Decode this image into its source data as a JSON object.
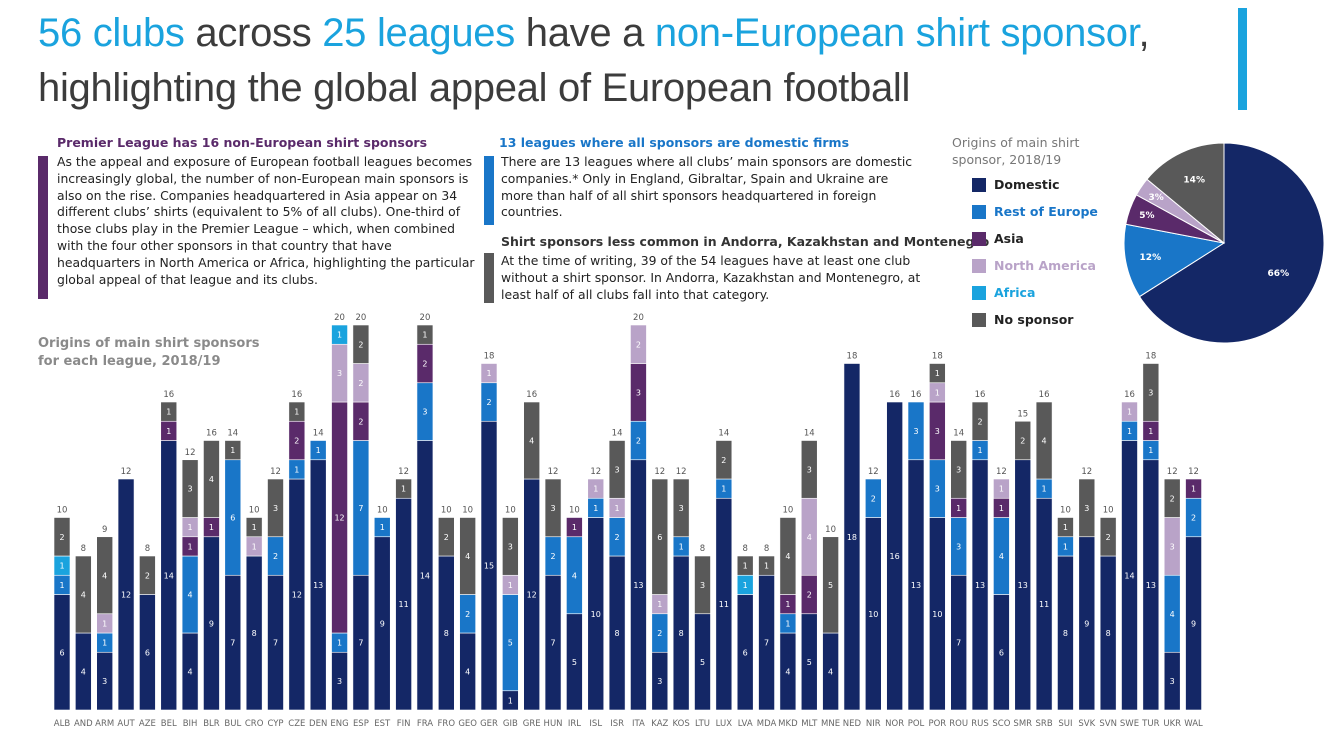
{
  "headline": {
    "hl1": "56 clubs",
    "t1": " across ",
    "hl2": "25 leagues",
    "t2": " have a ",
    "hl3": "non-European shirt sponsor",
    "t3": ", highlighting the global appeal of European football"
  },
  "sections": [
    {
      "title": "Premier League has 16 non-European shirt sponsors",
      "body": "As the appeal and exposure of European football leagues becomes increasingly global, the number of non-European main sponsors is also on the rise. Companies headquartered in Asia appear on 34 different clubs’ shirts (equivalent to 5% of all clubs). One-third of those clubs play in the Premier League – which, when combined with the four other sponsors in that country that have headquarters in North America or Africa, highlighting the particular global appeal of that league and its clubs.",
      "color": "#5a2a6a"
    },
    {
      "title": "13 leagues where all sponsors are domestic firms",
      "body": "There are 13 leagues where all clubs’ main sponsors are domestic companies.* Only in England, Gibraltar, Spain and Ukraine are more than half of all shirt sponsors headquartered in foreign countries.",
      "color": "#1976c8"
    },
    {
      "title": "Shirt sponsors less common in Andorra, Kazakhstan and Montenegro",
      "body": "At the time of writing, 39 of the 54 leagues have at least one club without a shirt sponsor. In Andorra, Kazakhstan and Montenegro, at least half of all clubs fall into that category.",
      "color": "#595959"
    }
  ],
  "pie_title": "Origins of main shirt sponsor, 2018/19",
  "chart_data": [
    {
      "type": "bar",
      "stacked": true,
      "title": "Origins of main shirt sponsors for each league, 2018/19",
      "ylim": [
        0,
        20
      ],
      "colors": {
        "Domestic": "#142766",
        "Rest of Europe": "#1976c8",
        "Asia": "#5a2a6a",
        "North America": "#b9a3c8",
        "Africa": "#1aa3de",
        "No sponsor": "#595959"
      },
      "categories": [
        "ALB",
        "AND",
        "ARM",
        "AUT",
        "AZE",
        "BEL",
        "BIH",
        "BLR",
        "BUL",
        "CRO",
        "CYP",
        "CZE",
        "DEN",
        "ENG",
        "ESP",
        "EST",
        "FIN",
        "FRA",
        "FRO",
        "GEO",
        "GER",
        "GIB",
        "GRE",
        "HUN",
        "IRL",
        "ISL",
        "ISR",
        "ITA",
        "KAZ",
        "KOS",
        "LTU",
        "LUX",
        "LVA",
        "MDA",
        "MKD",
        "MLT",
        "MNE",
        "NED",
        "NIR",
        "NOR",
        "POL",
        "POR",
        "ROU",
        "RUS",
        "SCO",
        "SMR",
        "SRB",
        "SUI",
        "SVK",
        "SVN",
        "SWE",
        "TUR",
        "UKR",
        "WAL"
      ],
      "totals": [
        10,
        8,
        9,
        12,
        8,
        16,
        12,
        16,
        14,
        10,
        12,
        16,
        14,
        20,
        20,
        10,
        12,
        20,
        10,
        10,
        18,
        10,
        16,
        12,
        10,
        12,
        14,
        20,
        12,
        12,
        8,
        14,
        8,
        8,
        10,
        14,
        10,
        18,
        12,
        16,
        16,
        18,
        14,
        16,
        12,
        15,
        16,
        10,
        12,
        10,
        16,
        18,
        12,
        12
      ],
      "series": [
        {
          "name": "Domestic",
          "values": [
            6,
            4,
            3,
            12,
            6,
            14,
            4,
            9,
            7,
            8,
            7,
            12,
            13,
            3,
            7,
            9,
            11,
            14,
            8,
            4,
            15,
            1,
            12,
            7,
            5,
            10,
            8,
            13,
            3,
            8,
            5,
            11,
            6,
            7,
            4,
            5,
            4,
            18,
            10,
            16,
            13,
            10,
            7,
            13,
            6,
            13,
            11,
            8,
            9,
            8,
            14,
            13,
            3,
            9
          ]
        },
        {
          "name": "Rest of Europe",
          "values": [
            1,
            0,
            1,
            0,
            0,
            0,
            4,
            0,
            6,
            0,
            2,
            1,
            1,
            1,
            7,
            1,
            0,
            3,
            0,
            2,
            2,
            5,
            0,
            2,
            4,
            1,
            2,
            2,
            2,
            1,
            0,
            1,
            0,
            0,
            1,
            0,
            0,
            0,
            2,
            0,
            3,
            3,
            3,
            1,
            4,
            0,
            1,
            1,
            0,
            0,
            1,
            1,
            4,
            2
          ]
        },
        {
          "name": "Asia",
          "values": [
            0,
            0,
            0,
            0,
            0,
            1,
            1,
            1,
            0,
            0,
            0,
            2,
            0,
            12,
            2,
            0,
            0,
            2,
            0,
            0,
            0,
            0,
            0,
            0,
            1,
            0,
            0,
            3,
            0,
            0,
            0,
            0,
            0,
            0,
            1,
            2,
            0,
            0,
            0,
            0,
            0,
            3,
            1,
            0,
            1,
            0,
            0,
            0,
            0,
            0,
            0,
            1,
            0,
            1
          ]
        },
        {
          "name": "North America",
          "values": [
            0,
            0,
            1,
            0,
            0,
            0,
            1,
            0,
            0,
            1,
            0,
            0,
            0,
            3,
            2,
            0,
            0,
            0,
            0,
            0,
            1,
            1,
            0,
            0,
            0,
            1,
            1,
            2,
            1,
            0,
            0,
            0,
            0,
            0,
            0,
            4,
            0,
            0,
            0,
            0,
            0,
            1,
            0,
            0,
            1,
            0,
            0,
            0,
            0,
            0,
            1,
            0,
            3,
            0
          ]
        },
        {
          "name": "Africa",
          "values": [
            1,
            0,
            0,
            0,
            0,
            0,
            0,
            0,
            0,
            0,
            0,
            0,
            0,
            1,
            0,
            0,
            0,
            0,
            0,
            0,
            0,
            0,
            0,
            0,
            0,
            0,
            0,
            0,
            0,
            0,
            0,
            0,
            1,
            0,
            0,
            0,
            0,
            0,
            0,
            0,
            0,
            0,
            0,
            0,
            0,
            0,
            0,
            0,
            0,
            0,
            0,
            0,
            0,
            0
          ]
        },
        {
          "name": "No sponsor",
          "values": [
            2,
            4,
            4,
            0,
            2,
            1,
            3,
            4,
            1,
            1,
            3,
            1,
            0,
            0,
            2,
            0,
            1,
            1,
            2,
            4,
            0,
            3,
            4,
            3,
            0,
            0,
            3,
            0,
            6,
            3,
            3,
            2,
            1,
            1,
            4,
            3,
            5,
            0,
            0,
            0,
            0,
            1,
            3,
            2,
            0,
            2,
            4,
            1,
            3,
            2,
            0,
            3,
            2,
            0
          ]
        }
      ]
    },
    {
      "type": "pie",
      "title": "Origins of main shirt sponsor, 2018/19",
      "labels": [
        "Domestic",
        "Rest of Europe",
        "Asia",
        "North America",
        "Africa",
        "No sponsor"
      ],
      "values": [
        66,
        12,
        5,
        3,
        0,
        14
      ],
      "value_labels": [
        "66%",
        "12%",
        "5%",
        "3%",
        "",
        "14%"
      ],
      "colors": [
        "#142766",
        "#1976c8",
        "#5a2a6a",
        "#b9a3c8",
        "#1aa3de",
        "#595959"
      ]
    }
  ]
}
